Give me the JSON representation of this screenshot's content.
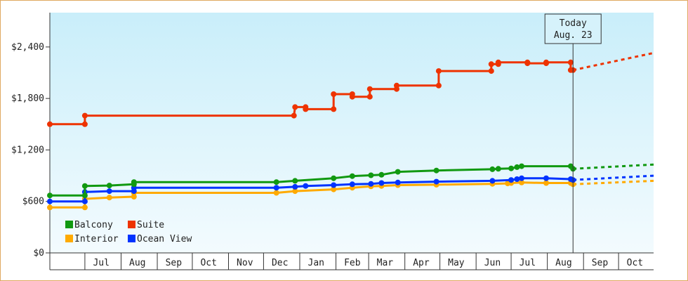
{
  "chart_data": {
    "type": "line",
    "title": "",
    "xlabel": "",
    "ylabel": "",
    "ylim": [
      0,
      2800
    ],
    "y_ticks": [
      0,
      600,
      1200,
      1800,
      2400
    ],
    "y_tick_labels": [
      "$0",
      "$600",
      "$1,200",
      "$1,800",
      "$2,400"
    ],
    "x_range": [
      "2021-06-01",
      "2022-10-31"
    ],
    "x_tick_labels": [
      {
        "label": "Jul",
        "center": "2021-07-15"
      },
      {
        "label": "Aug",
        "center": "2021-08-15"
      },
      {
        "label": "Sep",
        "center": "2021-09-15"
      },
      {
        "label": "Oct",
        "center": "2021-10-15"
      },
      {
        "label": "Nov",
        "center": "2021-11-15"
      },
      {
        "label": "Dec",
        "center": "2021-12-15"
      },
      {
        "label": "Jan",
        "center": "2022-01-15"
      },
      {
        "label": "Feb",
        "center": "2022-02-15"
      },
      {
        "label": "Mar",
        "center": "2022-03-15"
      },
      {
        "label": "Apr",
        "center": "2022-04-15"
      },
      {
        "label": "May",
        "center": "2022-05-15"
      },
      {
        "label": "Jun",
        "center": "2022-06-15"
      },
      {
        "label": "Jul",
        "center": "2022-07-15"
      },
      {
        "label": "Aug",
        "center": "2022-08-15"
      },
      {
        "label": "Sep",
        "center": "2022-09-15"
      },
      {
        "label": "Oct",
        "center": "2022-10-15"
      }
    ],
    "grid": false,
    "legend_placement": "bottom-left",
    "today": {
      "date": "2022-08-23",
      "line1": "Today",
      "line2": "Aug. 23"
    },
    "series": [
      {
        "name": "Balcony",
        "color": "#119911",
        "points": [
          [
            "2021-06-01",
            670
          ],
          [
            "2021-07-01",
            670
          ],
          [
            "2021-07-01",
            780
          ],
          [
            "2021-07-22",
            785
          ],
          [
            "2021-08-12",
            800
          ],
          [
            "2021-08-12",
            825
          ],
          [
            "2021-12-12",
            825
          ],
          [
            "2021-12-28",
            840
          ],
          [
            "2022-01-30",
            870
          ],
          [
            "2022-02-15",
            895
          ],
          [
            "2022-03-03",
            905
          ],
          [
            "2022-03-12",
            910
          ],
          [
            "2022-03-26",
            945
          ],
          [
            "2022-04-28",
            960
          ],
          [
            "2022-06-15",
            975
          ],
          [
            "2022-06-20",
            980
          ],
          [
            "2022-07-01",
            985
          ],
          [
            "2022-07-06",
            1000
          ],
          [
            "2022-07-10",
            1010
          ],
          [
            "2022-08-21",
            1010
          ],
          [
            "2022-08-23",
            980
          ]
        ],
        "forecast": [
          [
            "2022-08-23",
            980
          ],
          [
            "2022-10-31",
            1030
          ]
        ]
      },
      {
        "name": "Suite",
        "color": "#ee3300",
        "points": [
          [
            "2021-06-01",
            1500
          ],
          [
            "2021-07-01",
            1500
          ],
          [
            "2021-07-01",
            1600
          ],
          [
            "2021-12-27",
            1600
          ],
          [
            "2021-12-28",
            1700
          ],
          [
            "2022-01-06",
            1700
          ],
          [
            "2022-01-06",
            1675
          ],
          [
            "2022-01-30",
            1675
          ],
          [
            "2022-01-30",
            1850
          ],
          [
            "2022-02-15",
            1850
          ],
          [
            "2022-02-15",
            1820
          ],
          [
            "2022-03-02",
            1820
          ],
          [
            "2022-03-02",
            1910
          ],
          [
            "2022-03-25",
            1910
          ],
          [
            "2022-03-25",
            1950
          ],
          [
            "2022-04-30",
            1950
          ],
          [
            "2022-04-30",
            2120
          ],
          [
            "2022-06-14",
            2120
          ],
          [
            "2022-06-14",
            2200
          ],
          [
            "2022-06-20",
            2200
          ],
          [
            "2022-06-20",
            2220
          ],
          [
            "2022-07-15",
            2220
          ],
          [
            "2022-07-15",
            2210
          ],
          [
            "2022-07-31",
            2210
          ],
          [
            "2022-07-31",
            2220
          ],
          [
            "2022-08-21",
            2220
          ],
          [
            "2022-08-21",
            2130
          ],
          [
            "2022-08-23",
            2130
          ]
        ],
        "forecast": [
          [
            "2022-08-23",
            2130
          ],
          [
            "2022-10-31",
            2330
          ]
        ]
      },
      {
        "name": "Interior",
        "color": "#ffaa00",
        "points": [
          [
            "2021-06-01",
            530
          ],
          [
            "2021-07-01",
            530
          ],
          [
            "2021-07-01",
            630
          ],
          [
            "2021-07-22",
            645
          ],
          [
            "2021-08-12",
            655
          ],
          [
            "2021-08-12",
            700
          ],
          [
            "2021-12-12",
            700
          ],
          [
            "2021-12-28",
            720
          ],
          [
            "2022-01-30",
            740
          ],
          [
            "2022-02-15",
            760
          ],
          [
            "2022-03-03",
            775
          ],
          [
            "2022-03-12",
            780
          ],
          [
            "2022-03-26",
            790
          ],
          [
            "2022-04-28",
            795
          ],
          [
            "2022-06-15",
            805
          ],
          [
            "2022-06-28",
            810
          ],
          [
            "2022-07-01",
            815
          ],
          [
            "2022-07-10",
            820
          ],
          [
            "2022-07-31",
            815
          ],
          [
            "2022-08-21",
            815
          ],
          [
            "2022-08-23",
            800
          ]
        ],
        "forecast": [
          [
            "2022-08-23",
            800
          ],
          [
            "2022-10-31",
            840
          ]
        ]
      },
      {
        "name": "Ocean View",
        "color": "#0033ff",
        "points": [
          [
            "2021-06-01",
            600
          ],
          [
            "2021-07-01",
            600
          ],
          [
            "2021-07-01",
            710
          ],
          [
            "2021-07-22",
            720
          ],
          [
            "2021-08-12",
            720
          ],
          [
            "2021-08-12",
            760
          ],
          [
            "2021-12-12",
            760
          ],
          [
            "2021-12-28",
            770
          ],
          [
            "2022-01-06",
            780
          ],
          [
            "2022-01-30",
            790
          ],
          [
            "2022-02-15",
            800
          ],
          [
            "2022-03-03",
            805
          ],
          [
            "2022-03-12",
            815
          ],
          [
            "2022-03-26",
            820
          ],
          [
            "2022-04-28",
            830
          ],
          [
            "2022-06-15",
            840
          ],
          [
            "2022-07-01",
            850
          ],
          [
            "2022-07-06",
            860
          ],
          [
            "2022-07-10",
            870
          ],
          [
            "2022-07-31",
            870
          ],
          [
            "2022-08-21",
            860
          ],
          [
            "2022-08-23",
            850
          ]
        ],
        "forecast": [
          [
            "2022-08-23",
            850
          ],
          [
            "2022-10-31",
            900
          ]
        ]
      }
    ]
  }
}
